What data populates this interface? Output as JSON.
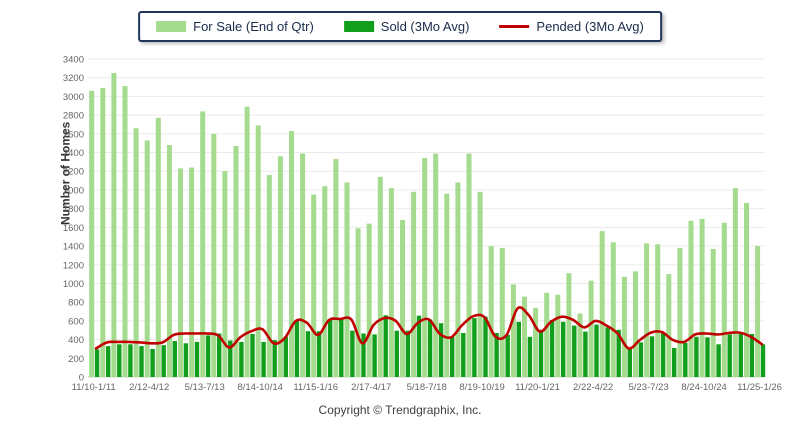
{
  "legend": {
    "items": [
      {
        "label": "For Sale (End of Qtr)",
        "color": "#A5DB8E",
        "type": "bar"
      },
      {
        "label": "Sold (3Mo Avg)",
        "color": "#119E1B",
        "type": "bar"
      },
      {
        "label": "Pended (3Mo Avg)",
        "color": "#C00000",
        "type": "line"
      }
    ]
  },
  "axes": {
    "y_label": "Number of Homes",
    "y_min": 0,
    "y_max": 3400,
    "y_step": 200,
    "x_tick_labels": [
      "11/10-1/11",
      "2/12-4/12",
      "5/13-7/13",
      "8/14-10/14",
      "11/15-1/16",
      "2/17-4/17",
      "5/18-7/18",
      "8/19-10/19",
      "11/20-1/21",
      "2/22-4/22",
      "5/23-7/23",
      "8/24-10/24",
      "11/25-1/26"
    ],
    "x_tick_interval": 5
  },
  "footer": {
    "text": "Copyright © Trendgraphix, Inc."
  },
  "colors": {
    "for_sale": "#A5DB8E",
    "sold": "#119E1B",
    "pended": "#C00000",
    "grid": "#EBEBEB",
    "axis_text": "#666666",
    "baseline": "#CFCFCF"
  },
  "chart_data": {
    "type": "bar",
    "quarters": 61,
    "x_tick_labels": [
      "11/10-1/11",
      "2/12-4/12",
      "5/13-7/13",
      "8/14-10/14",
      "11/15-1/16",
      "2/17-4/17",
      "5/18-7/18",
      "8/19-10/19",
      "11/20-1/21",
      "2/22-4/22",
      "5/23-7/23",
      "8/24-10/24",
      "11/25-1/26"
    ],
    "x_tick_interval": 5,
    "ylim": [
      0,
      3400
    ],
    "grid": true,
    "legend_position": "top",
    "ylabel": "Number of Homes",
    "series": [
      {
        "name": "For Sale (End of Qtr)",
        "type": "bar",
        "color": "#A5DB8E",
        "values": [
          3060,
          3090,
          3250,
          3110,
          2660,
          2530,
          2770,
          2480,
          2230,
          2240,
          2840,
          2600,
          2200,
          2470,
          2890,
          2690,
          2160,
          2360,
          2630,
          2390,
          1950,
          2040,
          2330,
          2080,
          1590,
          1640,
          2140,
          2020,
          1680,
          1980,
          2340,
          2390,
          1960,
          2080,
          2390,
          1980,
          1400,
          1380,
          990,
          860,
          740,
          900,
          880,
          1110,
          680,
          1030,
          1560,
          1440,
          1070,
          1130,
          1430,
          1420,
          1100,
          1380,
          1670,
          1690,
          1370,
          1650,
          2020,
          1860,
          1400
        ]
      },
      {
        "name": "Sold (3Mo Avg)",
        "type": "bar",
        "color": "#119E1B",
        "values": [
          295,
          330,
          350,
          350,
          330,
          300,
          340,
          385,
          360,
          375,
          445,
          465,
          390,
          375,
          460,
          375,
          395,
          430,
          600,
          490,
          490,
          615,
          620,
          495,
          465,
          455,
          660,
          495,
          495,
          655,
          615,
          575,
          430,
          470,
          630,
          645,
          470,
          450,
          590,
          430,
          505,
          610,
          590,
          550,
          485,
          560,
          530,
          505,
          310,
          370,
          435,
          465,
          310,
          365,
          430,
          425,
          350,
          455,
          465,
          460,
          350
        ]
      },
      {
        "name": "Pended (3Mo Avg)",
        "type": "line",
        "color": "#C00000",
        "values": [
          305,
          370,
          375,
          375,
          370,
          360,
          370,
          450,
          465,
          465,
          465,
          445,
          315,
          425,
          490,
          510,
          360,
          415,
          600,
          580,
          450,
          610,
          620,
          615,
          360,
          555,
          630,
          600,
          460,
          580,
          615,
          460,
          425,
          555,
          650,
          640,
          430,
          450,
          735,
          660,
          485,
          590,
          645,
          610,
          530,
          600,
          550,
          465,
          305,
          395,
          475,
          480,
          395,
          375,
          455,
          465,
          455,
          470,
          475,
          430,
          350
        ]
      }
    ]
  }
}
